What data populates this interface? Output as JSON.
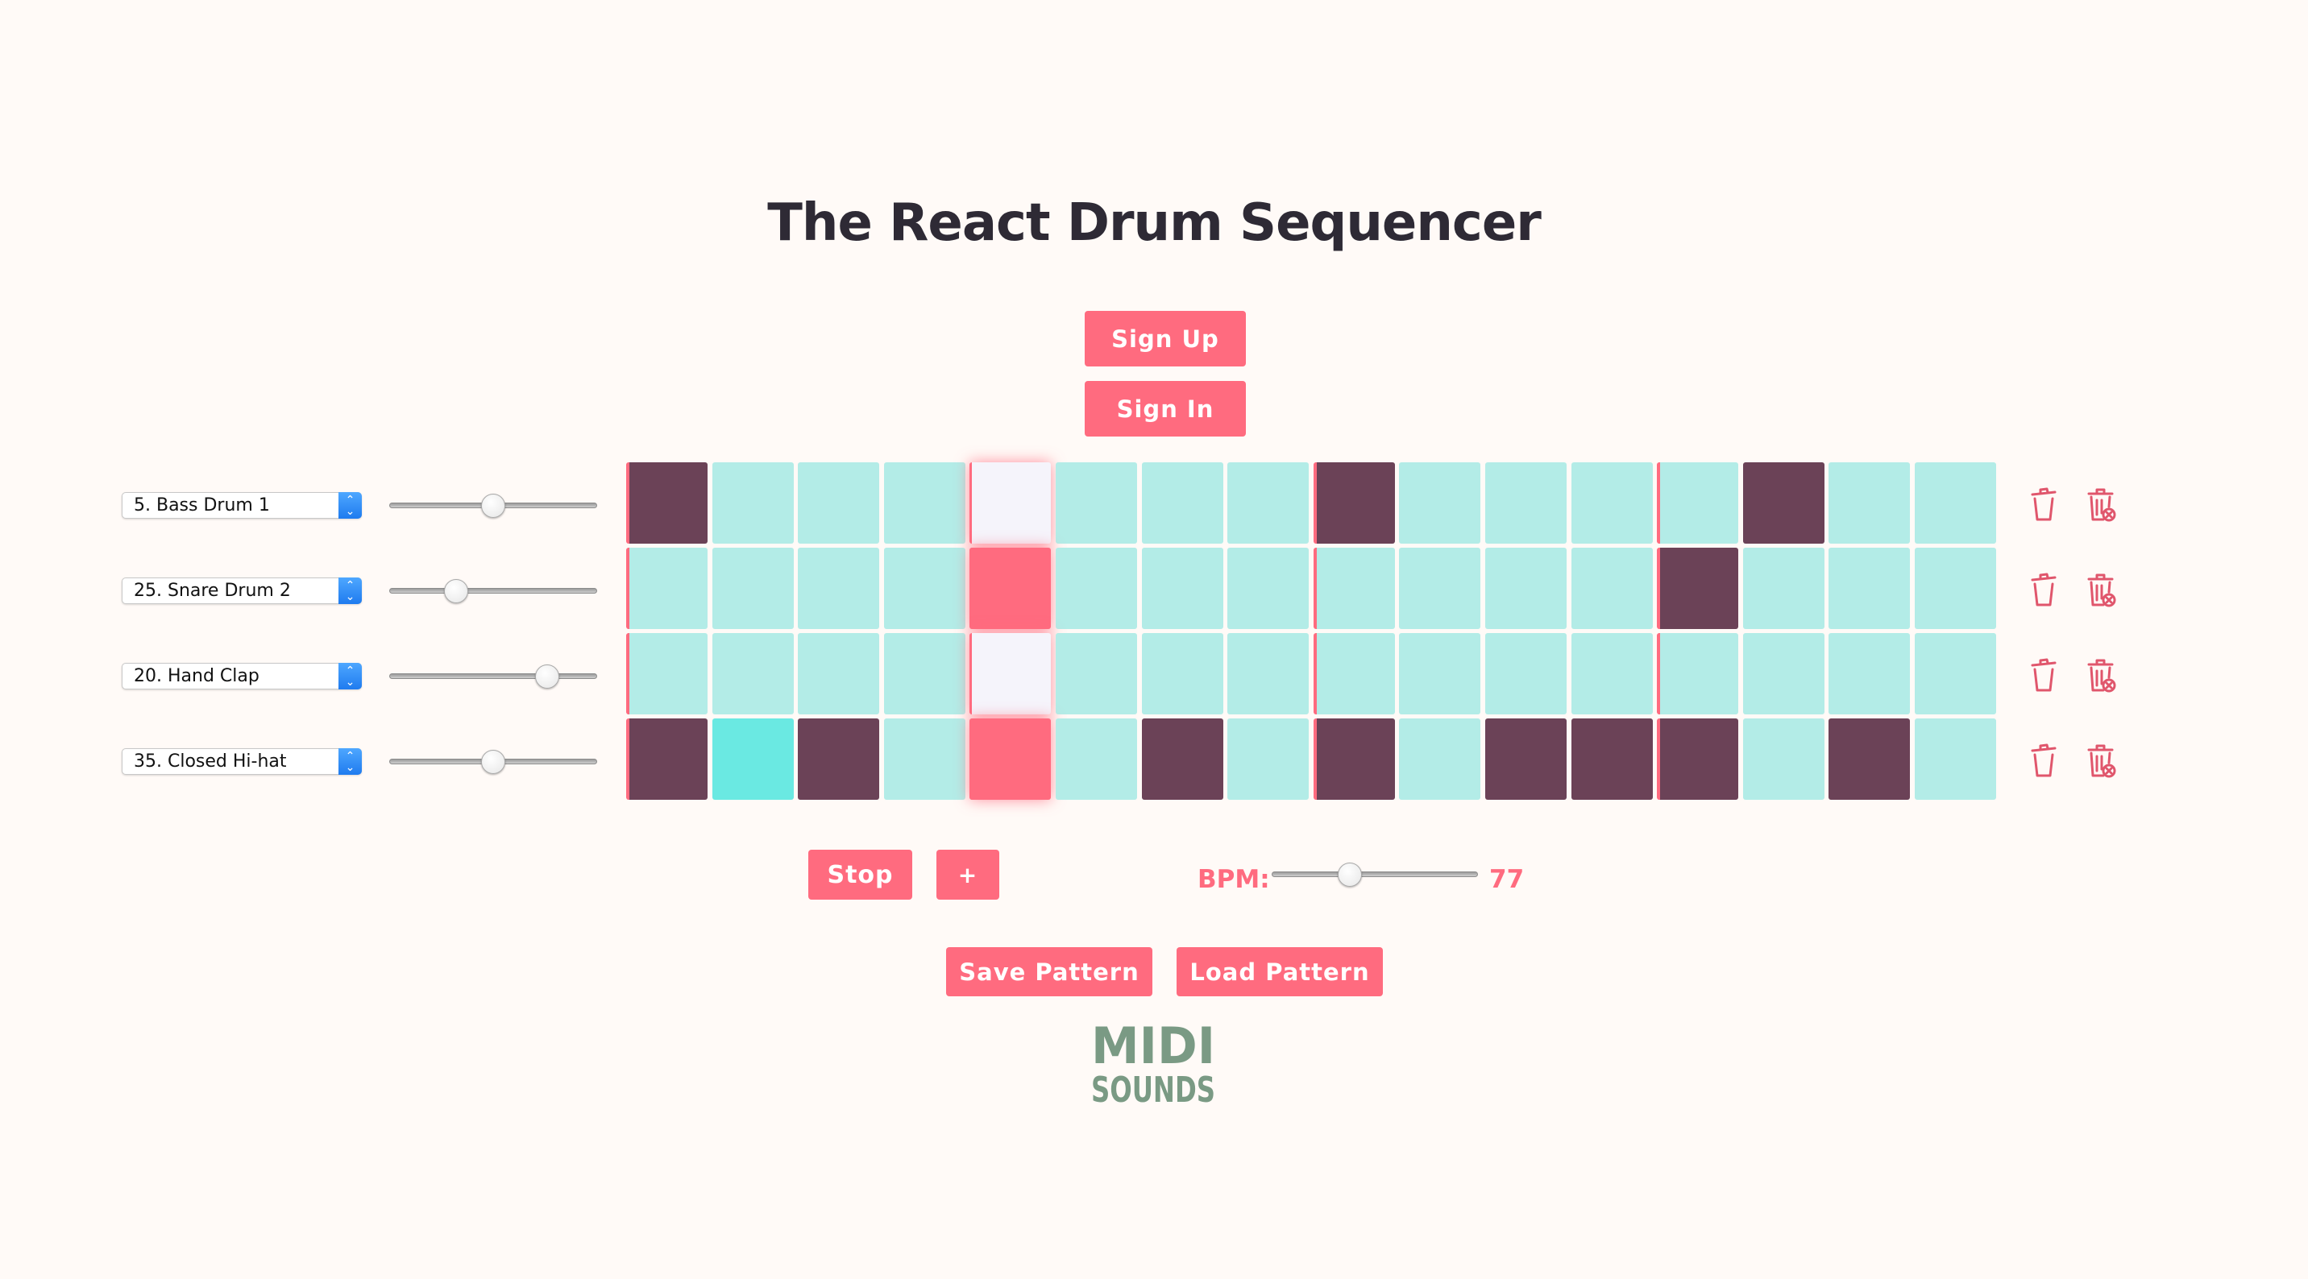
{
  "app": {
    "title": "The React Drum Sequencer"
  },
  "auth": {
    "sign_up_label": "Sign Up",
    "sign_in_label": "Sign In"
  },
  "tracks": [
    {
      "instrument": "5. Bass Drum 1",
      "volume": 0.5,
      "steps": [
        1,
        0,
        0,
        0,
        0,
        0,
        0,
        0,
        1,
        0,
        0,
        0,
        0,
        1,
        0,
        0
      ]
    },
    {
      "instrument": "25. Snare Drum 2",
      "volume": 0.32,
      "steps": [
        0,
        0,
        0,
        0,
        1,
        0,
        0,
        0,
        0,
        0,
        0,
        0,
        1,
        0,
        0,
        0
      ]
    },
    {
      "instrument": "20. Hand Clap",
      "volume": 0.76,
      "steps": [
        0,
        0,
        0,
        0,
        0,
        0,
        0,
        0,
        0,
        0,
        0,
        0,
        0,
        0,
        0,
        0
      ]
    },
    {
      "instrument": "35. Closed Hi-hat",
      "volume": 0.5,
      "steps": [
        1,
        2,
        1,
        0,
        1,
        0,
        1,
        0,
        1,
        0,
        1,
        1,
        1,
        0,
        1,
        0
      ]
    }
  ],
  "sequencer": {
    "current_step": 4,
    "beat_markers": [
      0,
      4,
      8,
      12
    ]
  },
  "track_actions": {
    "clear_icon": "trash-icon",
    "delete_icon": "delete-track-icon"
  },
  "transport": {
    "stop_label": "Stop",
    "add_track_label": "+"
  },
  "bpm": {
    "label": "BPM:",
    "value": "77",
    "slider_level": 0.38
  },
  "pattern": {
    "save_label": "Save Pattern",
    "load_label": "Load Pattern"
  },
  "logo": {
    "line1": "MIDI",
    "line2": "SOUNDS"
  },
  "colors": {
    "accent": "#ff6b7f",
    "cell_off": "#b3ece7",
    "cell_on": "#6b4257",
    "cell_hit": "#6ae9e2",
    "logo": "#7a9a84",
    "title": "#2e2a35"
  }
}
